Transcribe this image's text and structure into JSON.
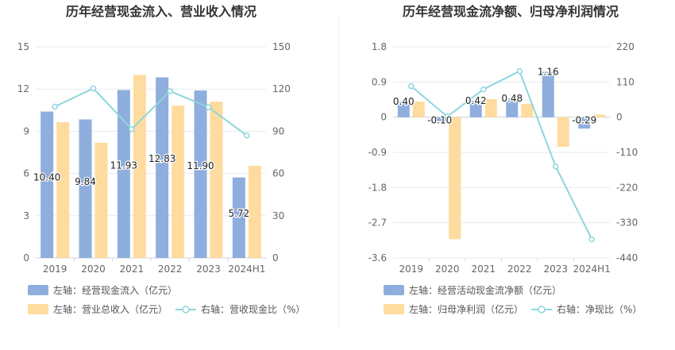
{
  "chart_data": [
    {
      "type": "bar",
      "title": "历年经营现金流入、营业收入情况",
      "categories": [
        "2019",
        "2020",
        "2021",
        "2022",
        "2023",
        "2024H1"
      ],
      "left_axis": {
        "ticks": [
          "0",
          "3",
          "6",
          "9",
          "12",
          "15"
        ],
        "ylim": [
          0,
          15
        ]
      },
      "right_axis": {
        "ticks": [
          "0",
          "30",
          "60",
          "90",
          "120",
          "150"
        ],
        "ylim": [
          0,
          150
        ]
      },
      "series": [
        {
          "name": "左轴：经营现金流入（亿元）",
          "kind": "bar",
          "axis": "left",
          "color": "#8eaedd",
          "values": [
            10.4,
            9.84,
            11.93,
            12.83,
            11.9,
            5.72
          ],
          "labels": [
            "10.40",
            "9.84",
            "11.93",
            "12.83",
            "11.90",
            "5.72"
          ]
        },
        {
          "name": "左轴：营业总收入（亿元）",
          "kind": "bar",
          "axis": "left",
          "color": "#fedb9e",
          "values": [
            9.65,
            8.18,
            13.0,
            10.82,
            11.1,
            6.55
          ]
        },
        {
          "name": "右轴：营收现金比（%）",
          "kind": "line",
          "axis": "right",
          "color": "#8dd6dc",
          "values": [
            107.5,
            120.5,
            91.6,
            118.5,
            107.1,
            87.0
          ]
        }
      ]
    },
    {
      "type": "bar",
      "title": "历年经营现金流净额、归母净利润情况",
      "categories": [
        "2019",
        "2020",
        "2021",
        "2022",
        "2023",
        "2024H1"
      ],
      "left_axis": {
        "ticks": [
          "-3.6",
          "-2.7",
          "-1.8",
          "-0.9",
          "0",
          "0.9",
          "1.8"
        ],
        "ylim": [
          -3.6,
          1.8
        ]
      },
      "right_axis": {
        "ticks": [
          "-440",
          "-330",
          "-220",
          "-110",
          "0",
          "110",
          "220"
        ],
        "ylim": [
          -440,
          220
        ]
      },
      "series": [
        {
          "name": "左轴：经营活动现金流净额（亿元）",
          "kind": "bar",
          "axis": "left",
          "color": "#8eaedd",
          "values": [
            0.4,
            -0.1,
            0.42,
            0.48,
            1.16,
            -0.29
          ],
          "labels": [
            "0.40",
            "-0.10",
            "0.42",
            "0.48",
            "1.16",
            "-0.29"
          ]
        },
        {
          "name": "左轴：归母净利润（亿元）",
          "kind": "bar",
          "axis": "left",
          "color": "#fedb9e",
          "values": [
            0.4,
            -3.12,
            0.46,
            0.34,
            -0.76,
            0.07
          ]
        },
        {
          "name": "右轴：净现比（%）",
          "kind": "line",
          "axis": "right",
          "color": "#8dd6dc",
          "values": [
            97,
            2,
            87,
            144,
            -154,
            -382
          ]
        }
      ]
    }
  ]
}
